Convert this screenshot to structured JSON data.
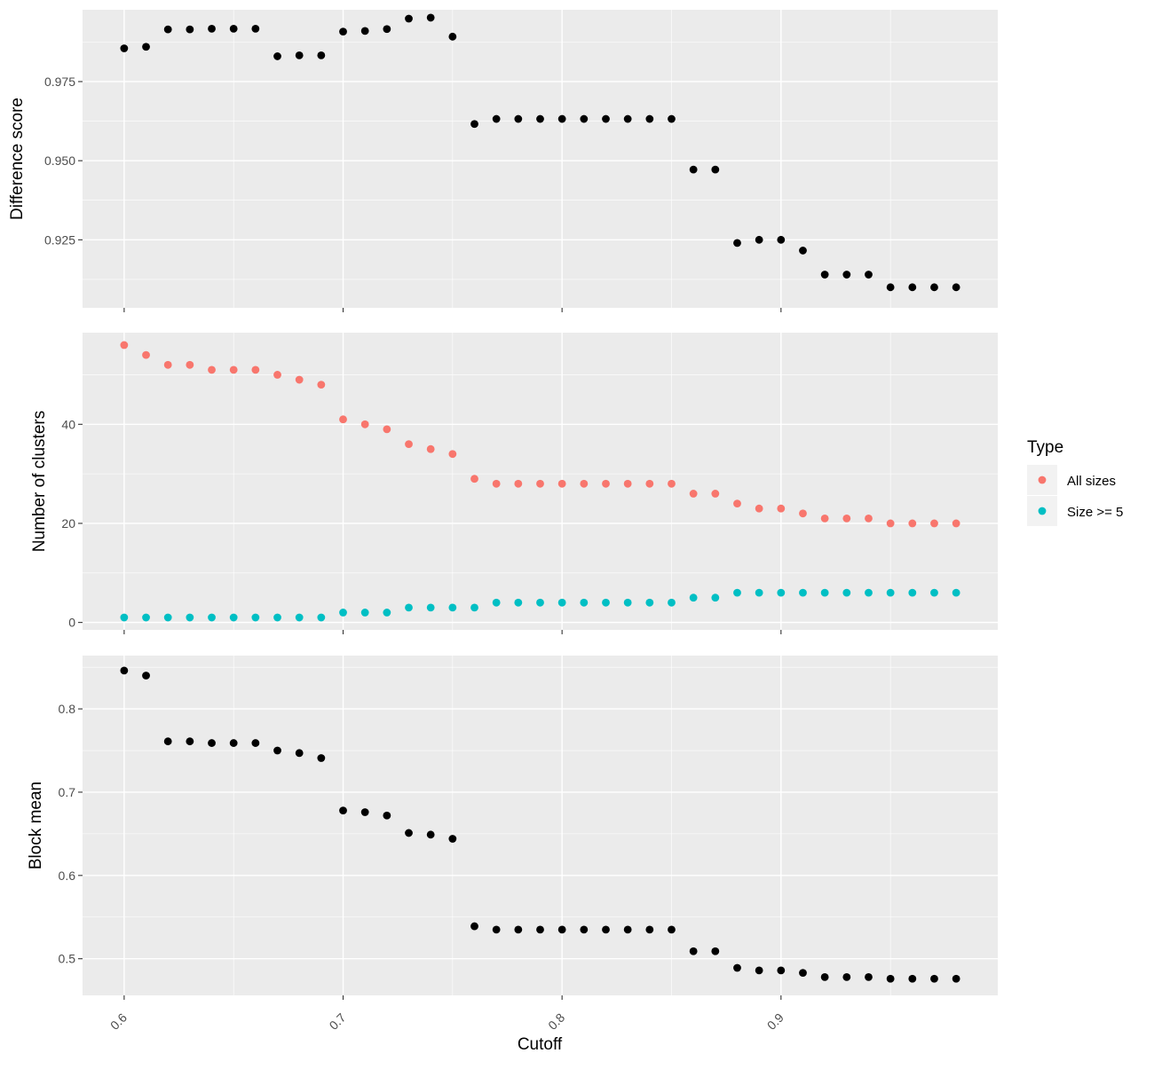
{
  "chart_data": [
    {
      "type": "scatter",
      "panel": "top",
      "ylabel": "Difference score",
      "ylim": [
        0.9035,
        0.9977
      ],
      "yticks": [
        0.925,
        0.95,
        0.975
      ],
      "ytick_labels": [
        "0.925",
        "0.950",
        "0.975"
      ],
      "grid": true,
      "series": [
        {
          "color": "#000000",
          "points": [
            [
              0.6,
              0.9855
            ],
            [
              0.61,
              0.986
            ],
            [
              0.62,
              0.9915
            ],
            [
              0.63,
              0.9915
            ],
            [
              0.64,
              0.9917
            ],
            [
              0.65,
              0.9917
            ],
            [
              0.66,
              0.9917
            ],
            [
              0.67,
              0.983
            ],
            [
              0.68,
              0.9833
            ],
            [
              0.69,
              0.9833
            ],
            [
              0.7,
              0.9908
            ],
            [
              0.71,
              0.991
            ],
            [
              0.72,
              0.9916
            ],
            [
              0.73,
              0.9949
            ],
            [
              0.74,
              0.9952
            ],
            [
              0.75,
              0.9892
            ],
            [
              0.76,
              0.9616
            ],
            [
              0.77,
              0.9632
            ],
            [
              0.78,
              0.9632
            ],
            [
              0.79,
              0.9632
            ],
            [
              0.8,
              0.9632
            ],
            [
              0.81,
              0.9632
            ],
            [
              0.82,
              0.9632
            ],
            [
              0.83,
              0.9632
            ],
            [
              0.84,
              0.9632
            ],
            [
              0.85,
              0.9632
            ],
            [
              0.86,
              0.9472
            ],
            [
              0.87,
              0.9472
            ],
            [
              0.88,
              0.924
            ],
            [
              0.89,
              0.925
            ],
            [
              0.9,
              0.925
            ],
            [
              0.91,
              0.9216
            ],
            [
              0.92,
              0.914
            ],
            [
              0.93,
              0.914
            ],
            [
              0.94,
              0.914
            ],
            [
              0.95,
              0.91
            ],
            [
              0.96,
              0.91
            ],
            [
              0.97,
              0.91
            ],
            [
              0.98,
              0.91
            ]
          ]
        }
      ]
    },
    {
      "type": "scatter",
      "panel": "middle",
      "ylabel": "Number of clusters",
      "ylim": [
        -1.5,
        58.5
      ],
      "yticks": [
        0,
        20,
        40
      ],
      "ytick_labels": [
        "0",
        "20",
        "40"
      ],
      "grid": true,
      "legend": {
        "title": "Type",
        "position": "right"
      },
      "series": [
        {
          "name": "All sizes",
          "color": "#F8766D",
          "points": [
            [
              0.6,
              56
            ],
            [
              0.61,
              54
            ],
            [
              0.62,
              52
            ],
            [
              0.63,
              52
            ],
            [
              0.64,
              51
            ],
            [
              0.65,
              51
            ],
            [
              0.66,
              51
            ],
            [
              0.67,
              50
            ],
            [
              0.68,
              49
            ],
            [
              0.69,
              48
            ],
            [
              0.7,
              41
            ],
            [
              0.71,
              40
            ],
            [
              0.72,
              39
            ],
            [
              0.73,
              36
            ],
            [
              0.74,
              35
            ],
            [
              0.75,
              34
            ],
            [
              0.76,
              29
            ],
            [
              0.77,
              28
            ],
            [
              0.78,
              28
            ],
            [
              0.79,
              28
            ],
            [
              0.8,
              28
            ],
            [
              0.81,
              28
            ],
            [
              0.82,
              28
            ],
            [
              0.83,
              28
            ],
            [
              0.84,
              28
            ],
            [
              0.85,
              28
            ],
            [
              0.86,
              26
            ],
            [
              0.87,
              26
            ],
            [
              0.88,
              24
            ],
            [
              0.89,
              23
            ],
            [
              0.9,
              23
            ],
            [
              0.91,
              22
            ],
            [
              0.92,
              21
            ],
            [
              0.93,
              21
            ],
            [
              0.94,
              21
            ],
            [
              0.95,
              20
            ],
            [
              0.96,
              20
            ],
            [
              0.97,
              20
            ],
            [
              0.98,
              20
            ]
          ]
        },
        {
          "name": "Size >= 5",
          "color": "#00BFC4",
          "points": [
            [
              0.6,
              1
            ],
            [
              0.61,
              1
            ],
            [
              0.62,
              1
            ],
            [
              0.63,
              1
            ],
            [
              0.64,
              1
            ],
            [
              0.65,
              1
            ],
            [
              0.66,
              1
            ],
            [
              0.67,
              1
            ],
            [
              0.68,
              1
            ],
            [
              0.69,
              1
            ],
            [
              0.7,
              2
            ],
            [
              0.71,
              2
            ],
            [
              0.72,
              2
            ],
            [
              0.73,
              3
            ],
            [
              0.74,
              3
            ],
            [
              0.75,
              3
            ],
            [
              0.76,
              3
            ],
            [
              0.77,
              4
            ],
            [
              0.78,
              4
            ],
            [
              0.79,
              4
            ],
            [
              0.8,
              4
            ],
            [
              0.81,
              4
            ],
            [
              0.82,
              4
            ],
            [
              0.83,
              4
            ],
            [
              0.84,
              4
            ],
            [
              0.85,
              4
            ],
            [
              0.86,
              5
            ],
            [
              0.87,
              5
            ],
            [
              0.88,
              6
            ],
            [
              0.89,
              6
            ],
            [
              0.9,
              6
            ],
            [
              0.91,
              6
            ],
            [
              0.92,
              6
            ],
            [
              0.93,
              6
            ],
            [
              0.94,
              6
            ],
            [
              0.95,
              6
            ],
            [
              0.96,
              6
            ],
            [
              0.97,
              6
            ],
            [
              0.98,
              6
            ]
          ]
        }
      ]
    },
    {
      "type": "scatter",
      "panel": "bottom",
      "ylabel": "Block mean",
      "ylim": [
        0.456,
        0.864
      ],
      "yticks": [
        0.5,
        0.6,
        0.7,
        0.8
      ],
      "ytick_labels": [
        "0.5",
        "0.6",
        "0.7",
        "0.8"
      ],
      "grid": true,
      "series": [
        {
          "color": "#000000",
          "points": [
            [
              0.6,
              0.846
            ],
            [
              0.61,
              0.84
            ],
            [
              0.62,
              0.761
            ],
            [
              0.63,
              0.761
            ],
            [
              0.64,
              0.759
            ],
            [
              0.65,
              0.759
            ],
            [
              0.66,
              0.759
            ],
            [
              0.67,
              0.75
            ],
            [
              0.68,
              0.747
            ],
            [
              0.69,
              0.741
            ],
            [
              0.7,
              0.678
            ],
            [
              0.71,
              0.676
            ],
            [
              0.72,
              0.672
            ],
            [
              0.73,
              0.651
            ],
            [
              0.74,
              0.649
            ],
            [
              0.75,
              0.644
            ],
            [
              0.76,
              0.539
            ],
            [
              0.77,
              0.535
            ],
            [
              0.78,
              0.535
            ],
            [
              0.79,
              0.535
            ],
            [
              0.8,
              0.535
            ],
            [
              0.81,
              0.535
            ],
            [
              0.82,
              0.535
            ],
            [
              0.83,
              0.535
            ],
            [
              0.84,
              0.535
            ],
            [
              0.85,
              0.535
            ],
            [
              0.86,
              0.509
            ],
            [
              0.87,
              0.509
            ],
            [
              0.88,
              0.489
            ],
            [
              0.89,
              0.486
            ],
            [
              0.9,
              0.486
            ],
            [
              0.91,
              0.483
            ],
            [
              0.92,
              0.478
            ],
            [
              0.93,
              0.478
            ],
            [
              0.94,
              0.478
            ],
            [
              0.95,
              0.476
            ],
            [
              0.96,
              0.476
            ],
            [
              0.97,
              0.476
            ],
            [
              0.98,
              0.476
            ]
          ]
        }
      ]
    }
  ],
  "shared_x": {
    "xlabel": "Cutoff",
    "xlim": [
      0.581,
      0.999
    ],
    "xticks": [
      0.6,
      0.7,
      0.8,
      0.9
    ],
    "xtick_labels": [
      "0.6",
      "0.7",
      "0.8",
      "0.9"
    ]
  },
  "legend": {
    "title": "Type",
    "items": [
      {
        "label": "All sizes",
        "color": "#F8766D"
      },
      {
        "label": "Size >= 5",
        "color": "#00BFC4"
      }
    ]
  }
}
